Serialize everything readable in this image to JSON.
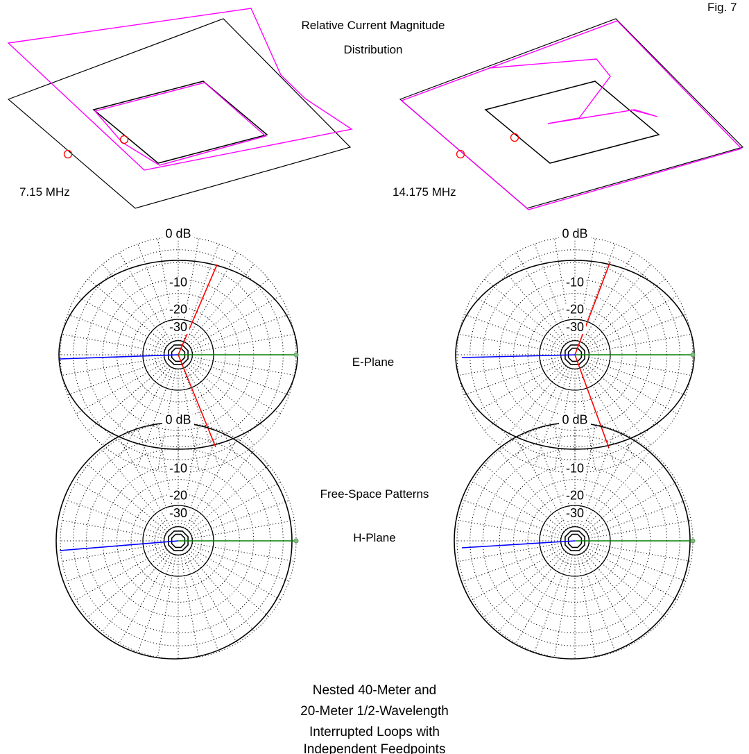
{
  "figure_label": "Fig. 7",
  "current_title_line1": "Relative Current Magnitude",
  "current_title_line2": "Distribution",
  "freq_left": "7.15 MHz",
  "freq_right": "14.175 MHz",
  "e_plane_label": "E-Plane",
  "h_plane_label": "H-Plane",
  "patterns_label": "Free-Space Patterns",
  "ring_labels": [
    "0 dB",
    "-10",
    "-20",
    "-30"
  ],
  "caption": [
    "Nested 40-Meter and",
    "20-Meter 1/2-Wavelength",
    "Interrupted Loops with",
    "Independent Feedpoints"
  ],
  "colors": {
    "wire": "#000000",
    "current": "#ff00ff",
    "source": "#ff0000",
    "pattern": "#000000",
    "e_plane_line": "#ff0000",
    "toward_line": "#0000ff",
    "axis_line": "#008000",
    "grid": "#000000"
  }
}
